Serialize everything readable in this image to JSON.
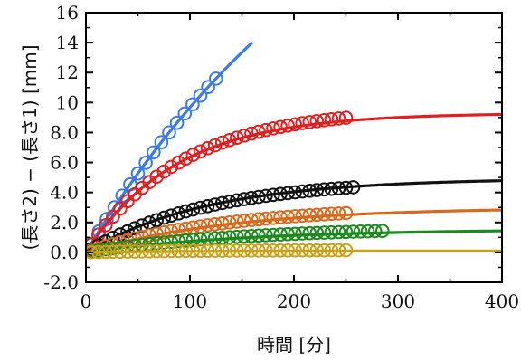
{
  "chart_data": {
    "type": "scatter",
    "xlabel": "時間 [分]",
    "ylabel": "(長さ2) − (長さ1) [mm]",
    "xlim": [
      0,
      400
    ],
    "ylim": [
      -2,
      16
    ],
    "x_ticks": [
      "0",
      "100",
      "200",
      "300",
      "400"
    ],
    "y_ticks": [
      "-2.0",
      "0.0",
      "2.0",
      "4.0",
      "6.0",
      "8.0",
      "10",
      "12",
      "14",
      "16"
    ],
    "grid": false,
    "series": [
      {
        "color": "#3a7be8",
        "points": {
          "x_start": 5,
          "x_end": 125,
          "x_step": 7.5,
          "plateau": 32,
          "rate": 0.0036
        },
        "fit": {
          "plateau": 32,
          "rate": 0.0036,
          "x_end": 160
        }
      },
      {
        "color": "#e02020",
        "points": {
          "x_start": 5,
          "x_end": 250,
          "x_step": 7,
          "plateau": 9.6,
          "rate": 0.011
        },
        "fit": {
          "plateau": 9.3,
          "rate": 0.0115,
          "x_end": 400
        }
      },
      {
        "color": "#111111",
        "points": {
          "x_start": 5,
          "x_end": 260,
          "x_step": 7,
          "plateau": 4.9,
          "rate": 0.0085
        },
        "fit": {
          "plateau": 4.95,
          "rate": 0.0085,
          "x_end": 400
        }
      },
      {
        "color": "#d86a1e",
        "points": {
          "x_start": 5,
          "x_end": 250,
          "x_step": 7,
          "plateau": 3.1,
          "rate": 0.0075
        },
        "fit": {
          "plateau": 3.0,
          "rate": 0.0072,
          "x_end": 400
        }
      },
      {
        "color": "#1a8a1a",
        "points": {
          "x_start": 5,
          "x_end": 290,
          "x_step": 7,
          "plateau": 1.7,
          "rate": 0.0065
        },
        "fit": {
          "plateau": 1.55,
          "rate": 0.0065,
          "x_end": 400
        }
      },
      {
        "color": "#c9a21a",
        "points": {
          "x_start": 5,
          "x_end": 250,
          "x_step": 7,
          "plateau": 0.15,
          "rate": 0.01
        },
        "fit": {
          "plateau": 0.1,
          "rate": 0.01,
          "x_end": 400
        }
      }
    ]
  }
}
